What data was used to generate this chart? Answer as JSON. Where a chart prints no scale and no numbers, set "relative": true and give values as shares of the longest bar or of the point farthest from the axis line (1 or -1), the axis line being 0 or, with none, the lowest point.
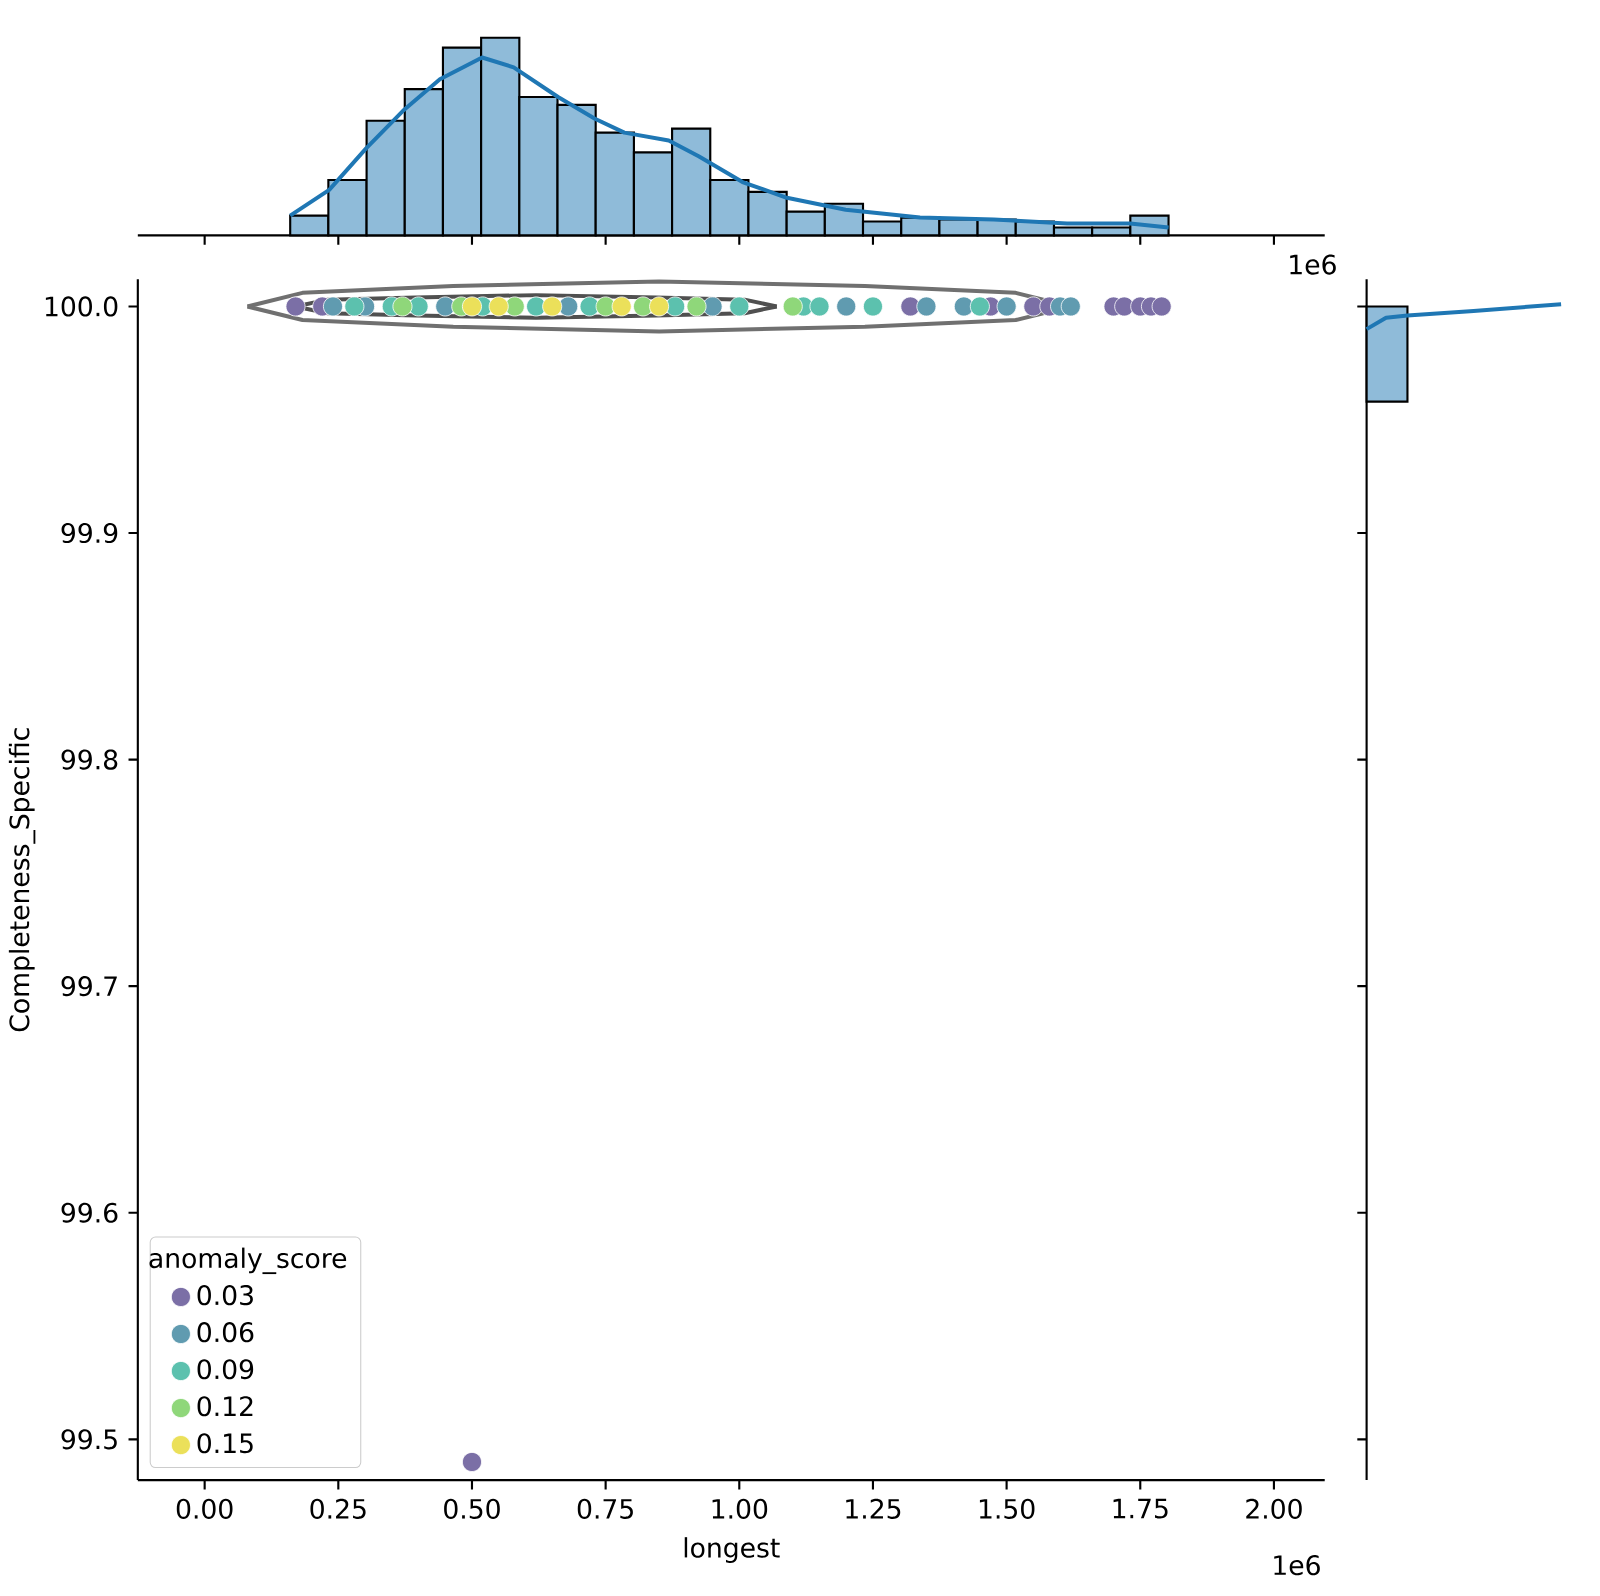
{
  "chart_data": [
    {
      "type": "histogram",
      "relative": true,
      "xlim": [
        -0.125,
        2.095
      ],
      "tick_labels": false,
      "xticks": [
        0,
        0.25,
        0.5,
        0.75,
        1.0,
        1.25,
        1.5,
        1.75,
        2.0
      ],
      "bins": [
        0.16,
        0.2314,
        0.3029,
        0.3743,
        0.4457,
        0.5171,
        0.5886,
        0.66,
        0.7314,
        0.8029,
        0.8743,
        0.9457,
        1.0171,
        1.0886,
        1.16,
        1.2314,
        1.3029,
        1.3743,
        1.4457,
        1.5171,
        1.5886,
        1.66,
        1.7314,
        1.8029
      ],
      "values": [
        0.1,
        0.28,
        0.58,
        0.74,
        0.95,
        1.0,
        0.7,
        0.66,
        0.52,
        0.42,
        0.54,
        0.28,
        0.22,
        0.12,
        0.16,
        0.07,
        0.09,
        0.08,
        0.08,
        0.07,
        0.04,
        0.04,
        0.1
      ],
      "color": "#8fbbd9",
      "series": [
        {
          "type": "line",
          "color": "#1f77b4",
          "x": [
            0.16,
            0.233,
            0.302,
            0.371,
            0.44,
            0.519,
            0.578,
            0.661,
            0.73,
            0.785,
            0.868,
            0.924,
            1.006,
            1.089,
            1.199,
            1.338,
            1.476,
            1.613,
            1.731,
            1.803
          ],
          "values": [
            0.1,
            0.23,
            0.44,
            0.63,
            0.79,
            0.9,
            0.85,
            0.7,
            0.59,
            0.52,
            0.48,
            0.4,
            0.27,
            0.19,
            0.13,
            0.09,
            0.08,
            0.06,
            0.06,
            0.04
          ]
        }
      ],
      "annotations": [
        "1e6"
      ]
    },
    {
      "type": "scatter",
      "xlabel": "longest",
      "ylabel": "Completeness_Specific",
      "xlim": [
        -0.125,
        2.095
      ],
      "ylim": [
        99.482,
        100.012
      ],
      "xticks": [
        {
          "value": 0,
          "label": "0.00"
        },
        0.25,
        {
          "value": 0.5,
          "label": "0.50"
        },
        0.75,
        {
          "value": 1.0,
          "label": "1.00"
        },
        1.25,
        {
          "value": 1.5,
          "label": "1.50"
        },
        1.75,
        {
          "value": 2.0,
          "label": "2.00"
        }
      ],
      "yticks": [
        99.5,
        99.6,
        99.7,
        99.8,
        99.9,
        {
          "value": 100.0,
          "label": "100.0"
        }
      ],
      "marker": "circle",
      "legend": "bottom left",
      "legend_title": "anomaly_score",
      "series": [
        {
          "name": "0.03",
          "color": "#7b6fa6",
          "x": [
            0.17,
            0.22,
            0.5,
            1.32,
            1.47,
            1.55,
            1.58,
            1.7,
            1.72,
            1.75,
            1.77,
            1.79
          ],
          "values": [
            100.0,
            100.0,
            99.49,
            100.0,
            100.0,
            100.0,
            100.0,
            100.0,
            100.0,
            100.0,
            100.0,
            100.0
          ]
        },
        {
          "name": "0.06",
          "color": "#609bb0",
          "x": [
            0.24,
            0.3,
            0.45,
            0.68,
            0.95,
            1.2,
            1.35,
            1.42,
            1.5,
            1.6,
            1.62
          ],
          "values": [
            100.0,
            100.0,
            100.0,
            100.0,
            100.0,
            100.0,
            100.0,
            100.0,
            100.0,
            100.0,
            100.0
          ]
        },
        {
          "name": "0.09",
          "color": "#5cc1ae",
          "x": [
            0.28,
            0.35,
            0.4,
            0.52,
            0.62,
            0.72,
            0.88,
            1.0,
            1.12,
            1.15,
            1.25,
            1.45
          ],
          "values": [
            100.0,
            100.0,
            100.0,
            100.0,
            100.0,
            100.0,
            100.0,
            100.0,
            100.0,
            100.0,
            100.0,
            100.0
          ]
        },
        {
          "name": "0.12",
          "color": "#8fd77a",
          "x": [
            0.37,
            0.48,
            0.58,
            0.75,
            0.82,
            0.92,
            1.1
          ],
          "values": [
            100.0,
            100.0,
            100.0,
            100.0,
            100.0,
            100.0,
            100.0
          ]
        },
        {
          "name": "0.15",
          "color": "#ebe05a",
          "x": [
            0.5,
            0.55,
            0.65,
            0.78,
            0.85
          ],
          "values": [
            100.0,
            100.0,
            100.0,
            100.0,
            100.0
          ]
        },
        {
          "type": "line",
          "marker": "none",
          "color": "#707070",
          "x": [
            0.08,
            0.183,
            0.465,
            0.85,
            1.235,
            1.517,
            1.62
          ],
          "values": [
            100.0,
            100.006,
            100.009,
            100.011,
            100.009,
            100.006,
            100.0
          ]
        },
        {
          "type": "line",
          "marker": "none",
          "color": "#707070",
          "x": [
            0.08,
            0.183,
            0.465,
            0.85,
            1.235,
            1.517,
            1.62
          ],
          "values": [
            100.0,
            99.994,
            99.991,
            99.989,
            99.991,
            99.994,
            100.0
          ]
        },
        {
          "type": "line",
          "marker": "none",
          "color": "#505050",
          "x": [
            0.17,
            0.23,
            0.395,
            0.62,
            0.845,
            1.01,
            1.07
          ],
          "values": [
            100.0,
            100.003,
            100.004,
            100.005,
            100.004,
            100.003,
            100.0
          ]
        },
        {
          "type": "line",
          "marker": "none",
          "color": "#505050",
          "x": [
            0.17,
            0.23,
            0.395,
            0.62,
            0.845,
            1.01,
            1.07
          ],
          "values": [
            100.0,
            99.997,
            99.996,
            99.995,
            99.996,
            99.997,
            100.0
          ]
        }
      ],
      "annotations": [
        "1e6"
      ]
    },
    {
      "type": "histogram",
      "relative": true,
      "orientation": "horizontal",
      "ylim": [
        99.482,
        100.012
      ],
      "tick_labels": false,
      "yticks": [
        99.5,
        99.6,
        99.7,
        99.8,
        99.9,
        100.0
      ],
      "bins": [
        99.958,
        100.0
      ],
      "values": [
        0.21
      ],
      "color": "#8fbbd9",
      "series": [
        {
          "type": "line",
          "color": "#1f77b4",
          "x": [
            99.99,
            99.995,
            99.996,
            99.998,
            100.001
          ],
          "values": [
            0,
            0.1,
            0.21,
            0.55,
            1.0
          ]
        }
      ]
    }
  ]
}
